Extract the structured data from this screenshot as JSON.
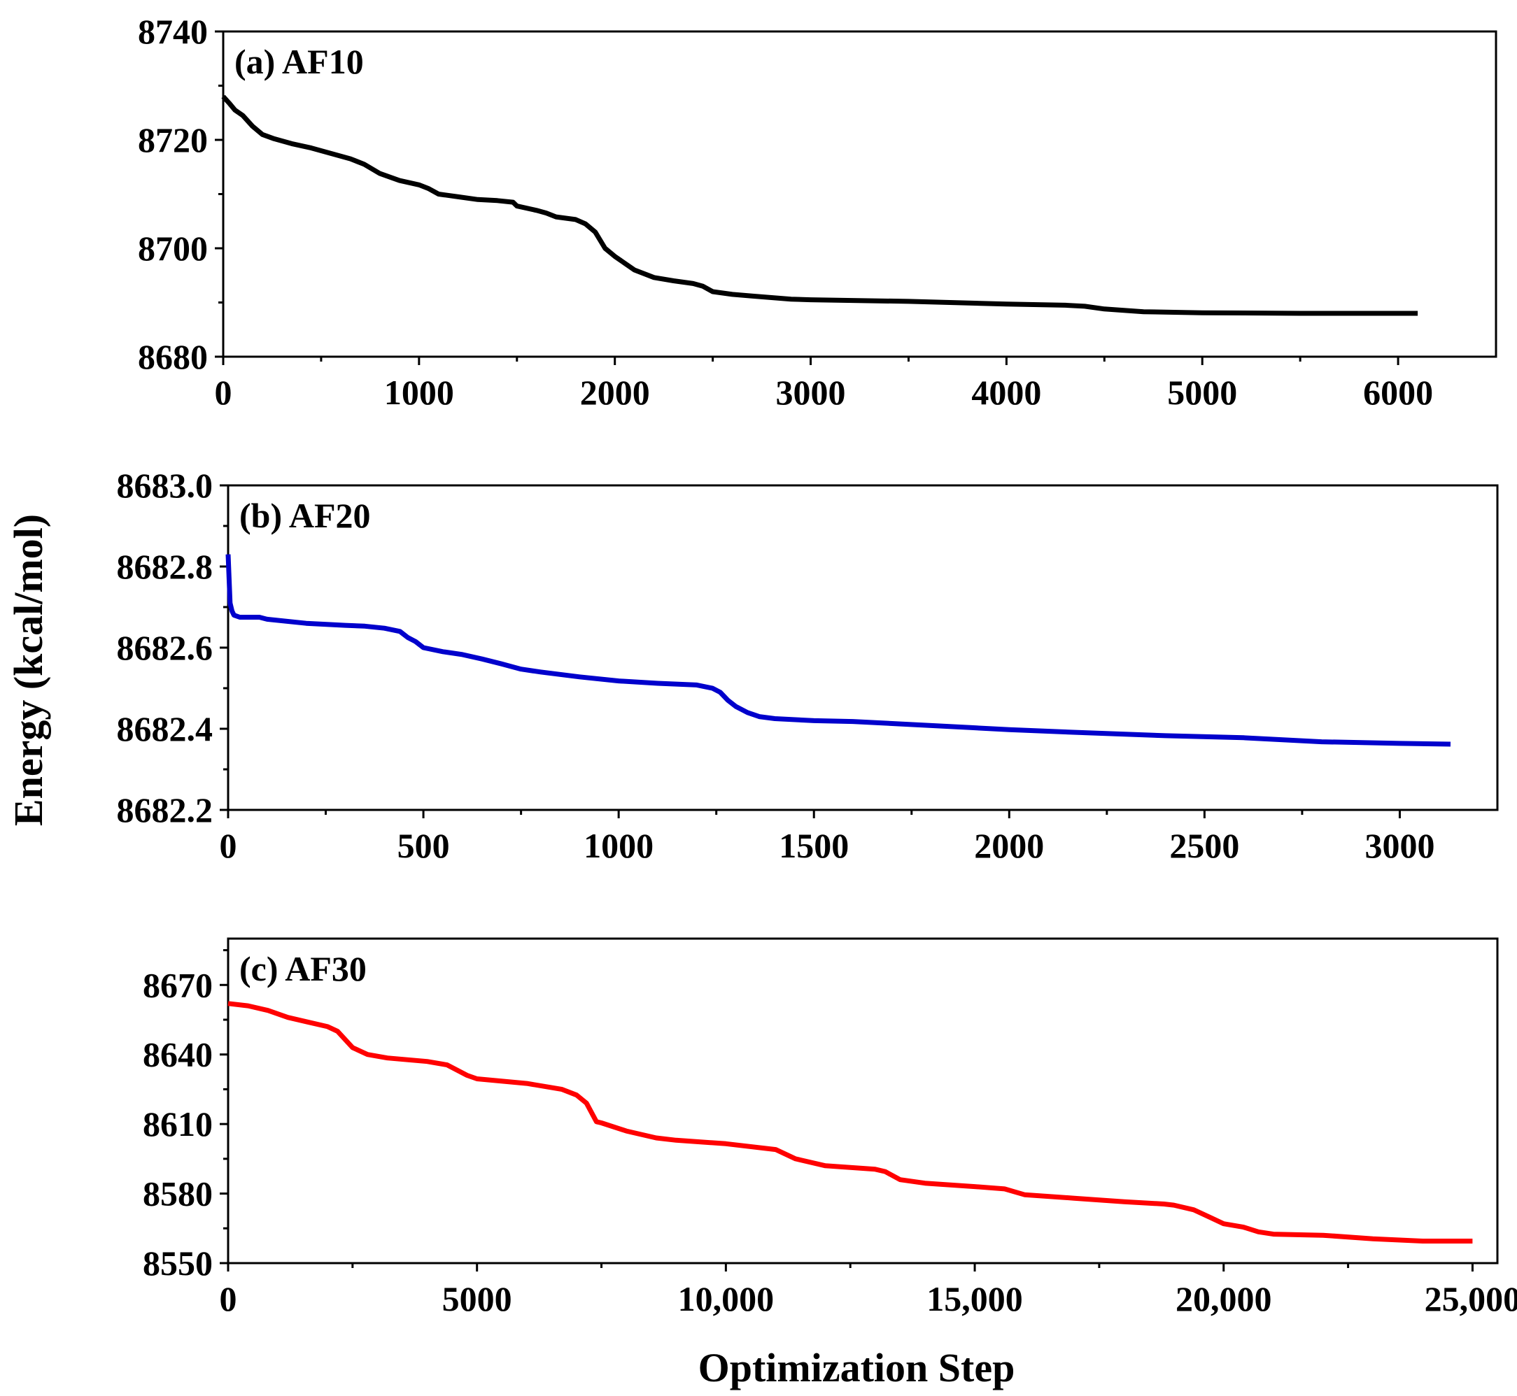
{
  "figure": {
    "ylabel": "Energy (kcal/mol)",
    "xlabel": "Optimization Step"
  },
  "chart_data": [
    {
      "type": "line",
      "title": "(a) AF10",
      "color": "#000000",
      "xlim": [
        0,
        6500
      ],
      "ylim": [
        8680,
        8740
      ],
      "xticks": [
        0,
        1000,
        2000,
        3000,
        4000,
        5000,
        6000
      ],
      "xtick_labels": [
        "0",
        "1000",
        "2000",
        "3000",
        "4000",
        "5000",
        "6000"
      ],
      "yticks": [
        8680,
        8700,
        8720,
        8740
      ],
      "ytick_labels": [
        "8680",
        "8700",
        "8720",
        "8740"
      ],
      "series": [
        {
          "name": "AF10",
          "x": [
            0,
            30,
            60,
            100,
            150,
            200,
            260,
            350,
            450,
            550,
            650,
            720,
            800,
            900,
            1000,
            1050,
            1100,
            1200,
            1300,
            1400,
            1480,
            1500,
            1600,
            1650,
            1700,
            1800,
            1850,
            1900,
            1950,
            2000,
            2100,
            2200,
            2300,
            2400,
            2450,
            2500,
            2600,
            2700,
            2800,
            2900,
            3000,
            3500,
            4000,
            4300,
            4400,
            4500,
            4700,
            5000,
            5500,
            6100
          ],
          "y": [
            8728,
            8726.8,
            8725.5,
            8724.5,
            8722.5,
            8721,
            8720.2,
            8719.3,
            8718.5,
            8717.5,
            8716.5,
            8715.5,
            8713.8,
            8712.5,
            8711.7,
            8711,
            8710,
            8709.5,
            8709,
            8708.8,
            8708.5,
            8707.8,
            8707,
            8706.5,
            8705.8,
            8705.3,
            8704.5,
            8703,
            8700,
            8698.5,
            8696,
            8694.6,
            8694,
            8693.5,
            8693,
            8692,
            8691.5,
            8691.2,
            8690.9,
            8690.6,
            8690.5,
            8690.2,
            8689.7,
            8689.5,
            8689.3,
            8688.8,
            8688.3,
            8688.1,
            8688,
            8688
          ]
        }
      ]
    },
    {
      "type": "line",
      "title": "(b) AF20",
      "color": "#0000cc",
      "xlim": [
        0,
        3250
      ],
      "ylim": [
        8682.2,
        8683.0
      ],
      "xticks": [
        0,
        500,
        1000,
        1500,
        2000,
        2500,
        3000
      ],
      "xtick_labels": [
        "0",
        "500",
        "1000",
        "1500",
        "2000",
        "2500",
        "3000"
      ],
      "yticks": [
        8682.2,
        8682.4,
        8682.6,
        8682.8,
        8683.0
      ],
      "ytick_labels": [
        "8682.2",
        "8682.4",
        "8682.6",
        "8682.8",
        "8683.0"
      ],
      "series": [
        {
          "name": "AF20",
          "x": [
            0,
            5,
            10,
            15,
            30,
            80,
            100,
            200,
            300,
            350,
            400,
            440,
            460,
            480,
            500,
            550,
            600,
            650,
            700,
            750,
            800,
            900,
            1000,
            1100,
            1200,
            1240,
            1260,
            1280,
            1300,
            1330,
            1360,
            1400,
            1500,
            1600,
            1700,
            1800,
            1900,
            2000,
            2200,
            2400,
            2600,
            2800,
            3000,
            3130
          ],
          "y": [
            8682.83,
            8682.71,
            8682.69,
            8682.68,
            8682.675,
            8682.675,
            8682.67,
            8682.66,
            8682.655,
            8682.653,
            8682.648,
            8682.64,
            8682.625,
            8682.615,
            8682.6,
            8682.59,
            8682.583,
            8682.572,
            8682.56,
            8682.547,
            8682.54,
            8682.528,
            8682.518,
            8682.512,
            8682.508,
            8682.5,
            8682.49,
            8682.47,
            8682.455,
            8682.44,
            8682.43,
            8682.425,
            8682.42,
            8682.418,
            8682.413,
            8682.408,
            8682.403,
            8682.398,
            8682.39,
            8682.383,
            8682.378,
            8682.368,
            8682.364,
            8682.362
          ]
        }
      ]
    },
    {
      "type": "line",
      "title": "(c) AF30",
      "color": "#ff0000",
      "xlim": [
        0,
        25500
      ],
      "ylim": [
        8550,
        8690
      ],
      "xticks": [
        0,
        5000,
        10000,
        15000,
        20000,
        25000
      ],
      "xtick_labels": [
        "0",
        "5000",
        "10,000",
        "15,000",
        "20,000",
        "25,000"
      ],
      "yticks": [
        8550,
        8580,
        8610,
        8640,
        8670
      ],
      "ytick_labels": [
        "8550",
        "8580",
        "8610",
        "8640",
        "8670"
      ],
      "series": [
        {
          "name": "AF30",
          "x": [
            0,
            400,
            800,
            1200,
            1600,
            2000,
            2200,
            2500,
            2800,
            3200,
            4000,
            4400,
            4800,
            5000,
            6000,
            6700,
            7000,
            7200,
            7400,
            7500,
            8000,
            8600,
            9000,
            10000,
            11000,
            11400,
            12000,
            13000,
            13200,
            13500,
            14000,
            15000,
            15600,
            16000,
            17000,
            18000,
            18800,
            19000,
            19400,
            19700,
            20000,
            20400,
            20700,
            21000,
            22000,
            23000,
            24000,
            25000
          ],
          "y": [
            8662,
            8661,
            8659,
            8656,
            8654,
            8652,
            8650,
            8643,
            8640,
            8638.5,
            8637,
            8635.5,
            8631,
            8629.5,
            8627.5,
            8625,
            8622.5,
            8619,
            8611,
            8610.5,
            8607,
            8604,
            8603,
            8601.5,
            8599,
            8595,
            8592,
            8590.5,
            8589.5,
            8586,
            8584.5,
            8583,
            8582,
            8579.5,
            8578,
            8576.5,
            8575.5,
            8575,
            8573,
            8570,
            8567,
            8565.5,
            8563.5,
            8562.5,
            8562,
            8560.5,
            8559.5,
            8559.5
          ]
        }
      ]
    }
  ]
}
